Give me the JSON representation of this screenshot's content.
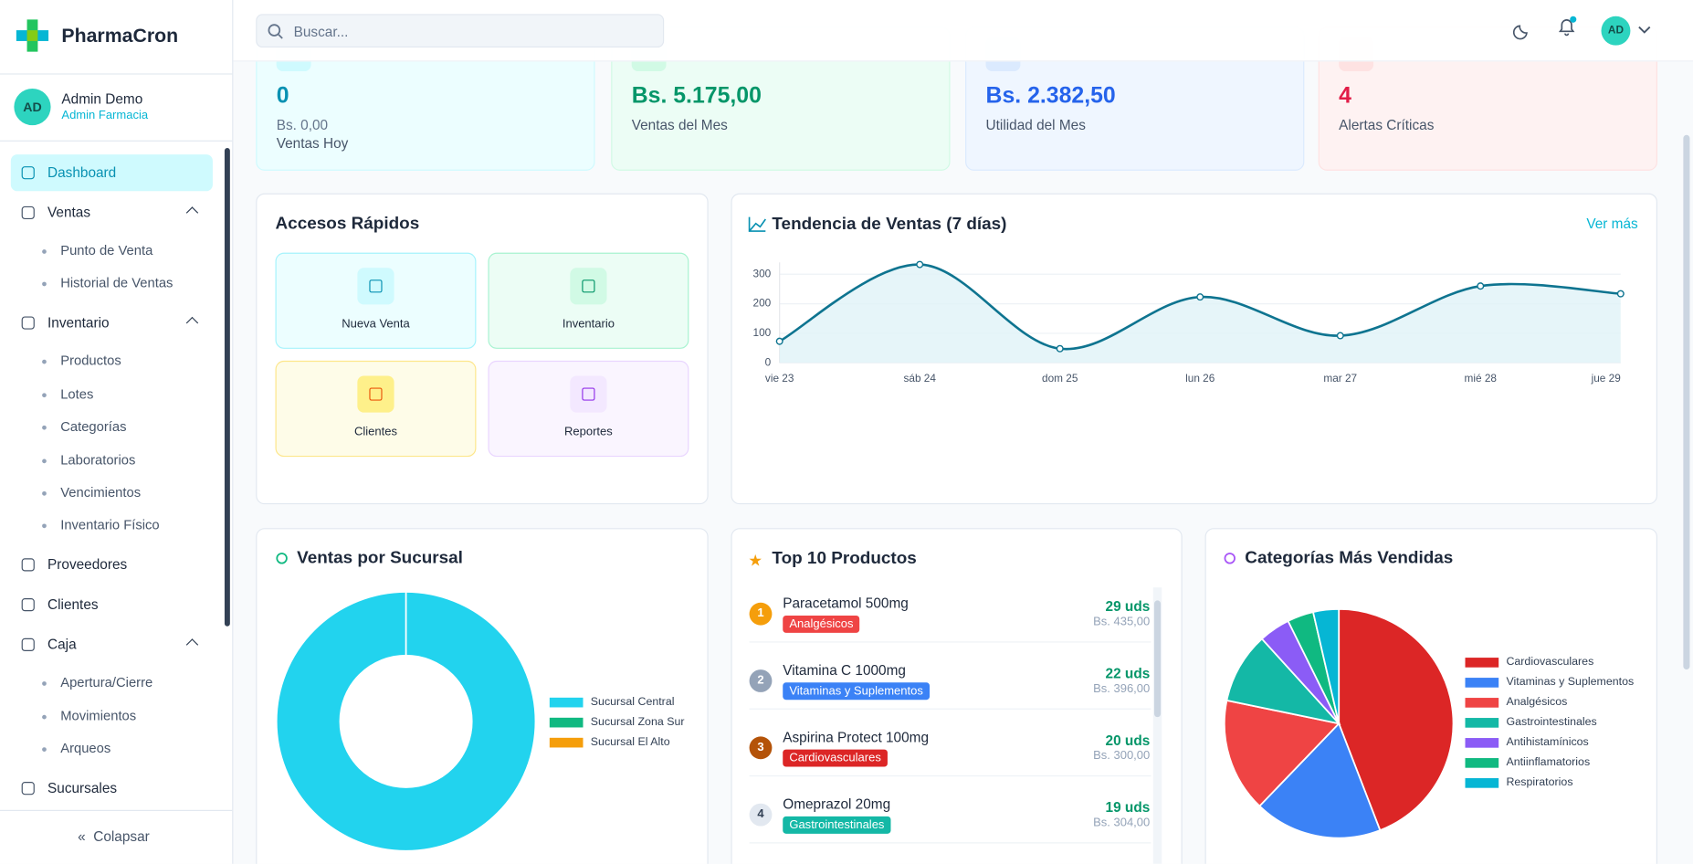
{
  "brand": "PharmaCron",
  "user": {
    "initials": "AD",
    "name": "Admin Demo",
    "role": "Admin Farmacia"
  },
  "nav": [
    {
      "label": "Dashboard",
      "active": true
    },
    {
      "label": "Ventas",
      "children": [
        "Punto de Venta",
        "Historial de Ventas"
      ]
    },
    {
      "label": "Inventario",
      "children": [
        "Productos",
        "Lotes",
        "Categorías",
        "Laboratorios",
        "Vencimientos",
        "Inventario Físico"
      ]
    },
    {
      "label": "Proveedores"
    },
    {
      "label": "Clientes"
    },
    {
      "label": "Caja",
      "children": [
        "Apertura/Cierre",
        "Movimientos",
        "Arqueos"
      ]
    },
    {
      "label": "Sucursales"
    }
  ],
  "collapse": "Colapsar",
  "search_placeholder": "Buscar...",
  "header_initials": "AD",
  "stats": [
    {
      "value": "0",
      "sub": "Bs. 0,00",
      "label": "Ventas Hoy",
      "color": "#0891b2",
      "bg": "#ecfeff",
      "border": "#cffafe"
    },
    {
      "value": "Bs. 5.175,00",
      "label": "Ventas del Mes",
      "color": "#059669",
      "bg": "#ecfdf5",
      "border": "#d1fae5"
    },
    {
      "value": "Bs. 2.382,50",
      "label": "Utilidad del Mes",
      "color": "#2563eb",
      "bg": "#eff6ff",
      "border": "#dbeafe"
    },
    {
      "value": "4",
      "label": "Alertas Críticas",
      "color": "#e11d48",
      "bg": "#fef2f2",
      "border": "#fee2e2"
    }
  ],
  "quick": {
    "title": "Accesos Rápidos",
    "items": [
      {
        "label": "Nueva Venta",
        "bg": "#ecfeff",
        "border": "#a5f3fc",
        "icon": "#0891b2",
        "iconbg": "#cffafe"
      },
      {
        "label": "Inventario",
        "bg": "#ecfdf5",
        "border": "#a7f3d0",
        "icon": "#059669",
        "iconbg": "#d1fae5"
      },
      {
        "label": "Clientes",
        "bg": "#fefce8",
        "border": "#fde68a",
        "icon": "#ea580c",
        "iconbg": "#fef08a"
      },
      {
        "label": "Reportes",
        "bg": "#faf5ff",
        "border": "#e9d5ff",
        "icon": "#9333ea",
        "iconbg": "#f3e8ff"
      }
    ]
  },
  "top_products": {
    "title": "Top 10 Productos",
    "items": [
      {
        "rank": "1",
        "name": "Paracetamol 500mg",
        "category": "Analgésicos",
        "units": "29 uds",
        "amount": "Bs. 435,00",
        "rank_color": "#f59e0b",
        "badge_color": "#ef4444"
      },
      {
        "rank": "2",
        "name": "Vitamina C 1000mg",
        "category": "Vitaminas y Suplementos",
        "units": "22 uds",
        "amount": "Bs. 396,00",
        "rank_color": "#94a3b8",
        "badge_color": "#3b82f6"
      },
      {
        "rank": "3",
        "name": "Aspirina Protect 100mg",
        "category": "Cardiovasculares",
        "units": "20 uds",
        "amount": "Bs. 300,00",
        "rank_color": "#b45309",
        "badge_color": "#dc2626"
      },
      {
        "rank": "4",
        "name": "Omeprazol 20mg",
        "category": "Gastrointestinales",
        "units": "19 uds",
        "amount": "Bs. 304,00",
        "rank_color": "#e2e8f0",
        "badge_color": "#14b8a6"
      }
    ]
  },
  "chart_data": [
    {
      "type": "line",
      "title": "Tendencia de Ventas (7 días)",
      "link": "Ver más",
      "categories": [
        "vie 23",
        "sáb 24",
        "dom 25",
        "lun 26",
        "mar 27",
        "mié 28",
        "jue 29"
      ],
      "values": [
        73,
        333,
        48,
        223,
        92,
        260,
        234
      ],
      "color": "#0e7490",
      "fill": "#e0f2f7",
      "ylim": [
        0,
        340
      ],
      "yticks": [
        0,
        100,
        200,
        300
      ],
      "grid": true
    },
    {
      "type": "donut",
      "title": "Ventas por Sucursal",
      "categories": [
        "Sucursal Central",
        "Sucursal Zona Sur",
        "Sucursal El Alto"
      ],
      "values": [
        100,
        0,
        0
      ],
      "colors": [
        "#22d3ee",
        "#10b981",
        "#f59e0b"
      ]
    },
    {
      "type": "pie",
      "title": "Categorías Más Vendidas",
      "categories": [
        "Cardiovasculares",
        "Vitaminas y Suplementos",
        "Analgésicos",
        "Gastrointestinales",
        "Antihistamínicos",
        "Antiinflamatorios",
        "Respiratorios"
      ],
      "values": [
        44,
        18,
        16,
        10,
        4.4,
        3.7,
        3.6
      ],
      "colors": [
        "#dc2626",
        "#3b82f6",
        "#ef4444",
        "#14b8a6",
        "#8b5cf6",
        "#10b981",
        "#06b6d4"
      ]
    }
  ]
}
